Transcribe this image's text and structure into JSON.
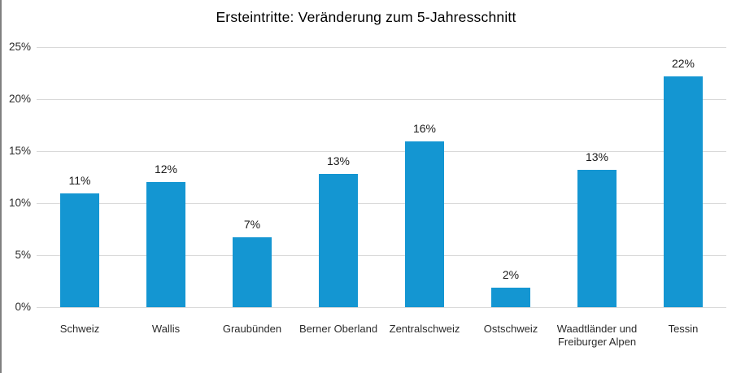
{
  "page": {
    "background": "#ffffff",
    "left_edge_color": "#808080"
  },
  "chart_data": {
    "type": "bar",
    "title": "Ersteintritte: Veränderung zum 5-Jahresschnitt",
    "categories": [
      "Schweiz",
      "Wallis",
      "Graubünden",
      "Berner Oberland",
      "Zentralschweiz",
      "Ostschweiz",
      "Waadtländer und Freiburger Alpen",
      "Tessin"
    ],
    "values": [
      11,
      12,
      7,
      13,
      16,
      2,
      13,
      22
    ],
    "bar_heights_precise_pct": [
      10.9,
      12.0,
      6.7,
      12.8,
      15.9,
      1.9,
      13.2,
      22.2
    ],
    "data_labels": [
      "11%",
      "12%",
      "7%",
      "13%",
      "16%",
      "2%",
      "13%",
      "22%"
    ],
    "y_ticks": [
      "25%",
      "20%",
      "15%",
      "10%",
      "5%",
      "0%"
    ],
    "y_tick_values": [
      25,
      20,
      15,
      10,
      5,
      0
    ],
    "ylim": [
      0,
      25
    ],
    "xlabel": "",
    "ylabel": "",
    "grid": "horizontal",
    "legend": "none",
    "bar_color": "#1496d2",
    "gridline_color": "#d9d9d9",
    "axis_label_color": "#2b2b2b",
    "data_label_color": "#1a1a1a",
    "title_color": "#000000"
  }
}
